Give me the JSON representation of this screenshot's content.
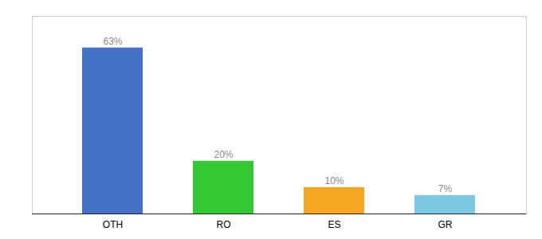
{
  "chart_data": {
    "type": "bar",
    "categories": [
      "OTH",
      "RO",
      "ES",
      "GR"
    ],
    "values": [
      63,
      20,
      10,
      7
    ],
    "value_labels": [
      "63%",
      "20%",
      "10%",
      "7%"
    ],
    "colors": [
      "#4472c4",
      "#34c934",
      "#f5a623",
      "#7ec8e3"
    ],
    "ylim": [
      0,
      75
    ],
    "data_labels": true,
    "tick_labels": "x"
  }
}
